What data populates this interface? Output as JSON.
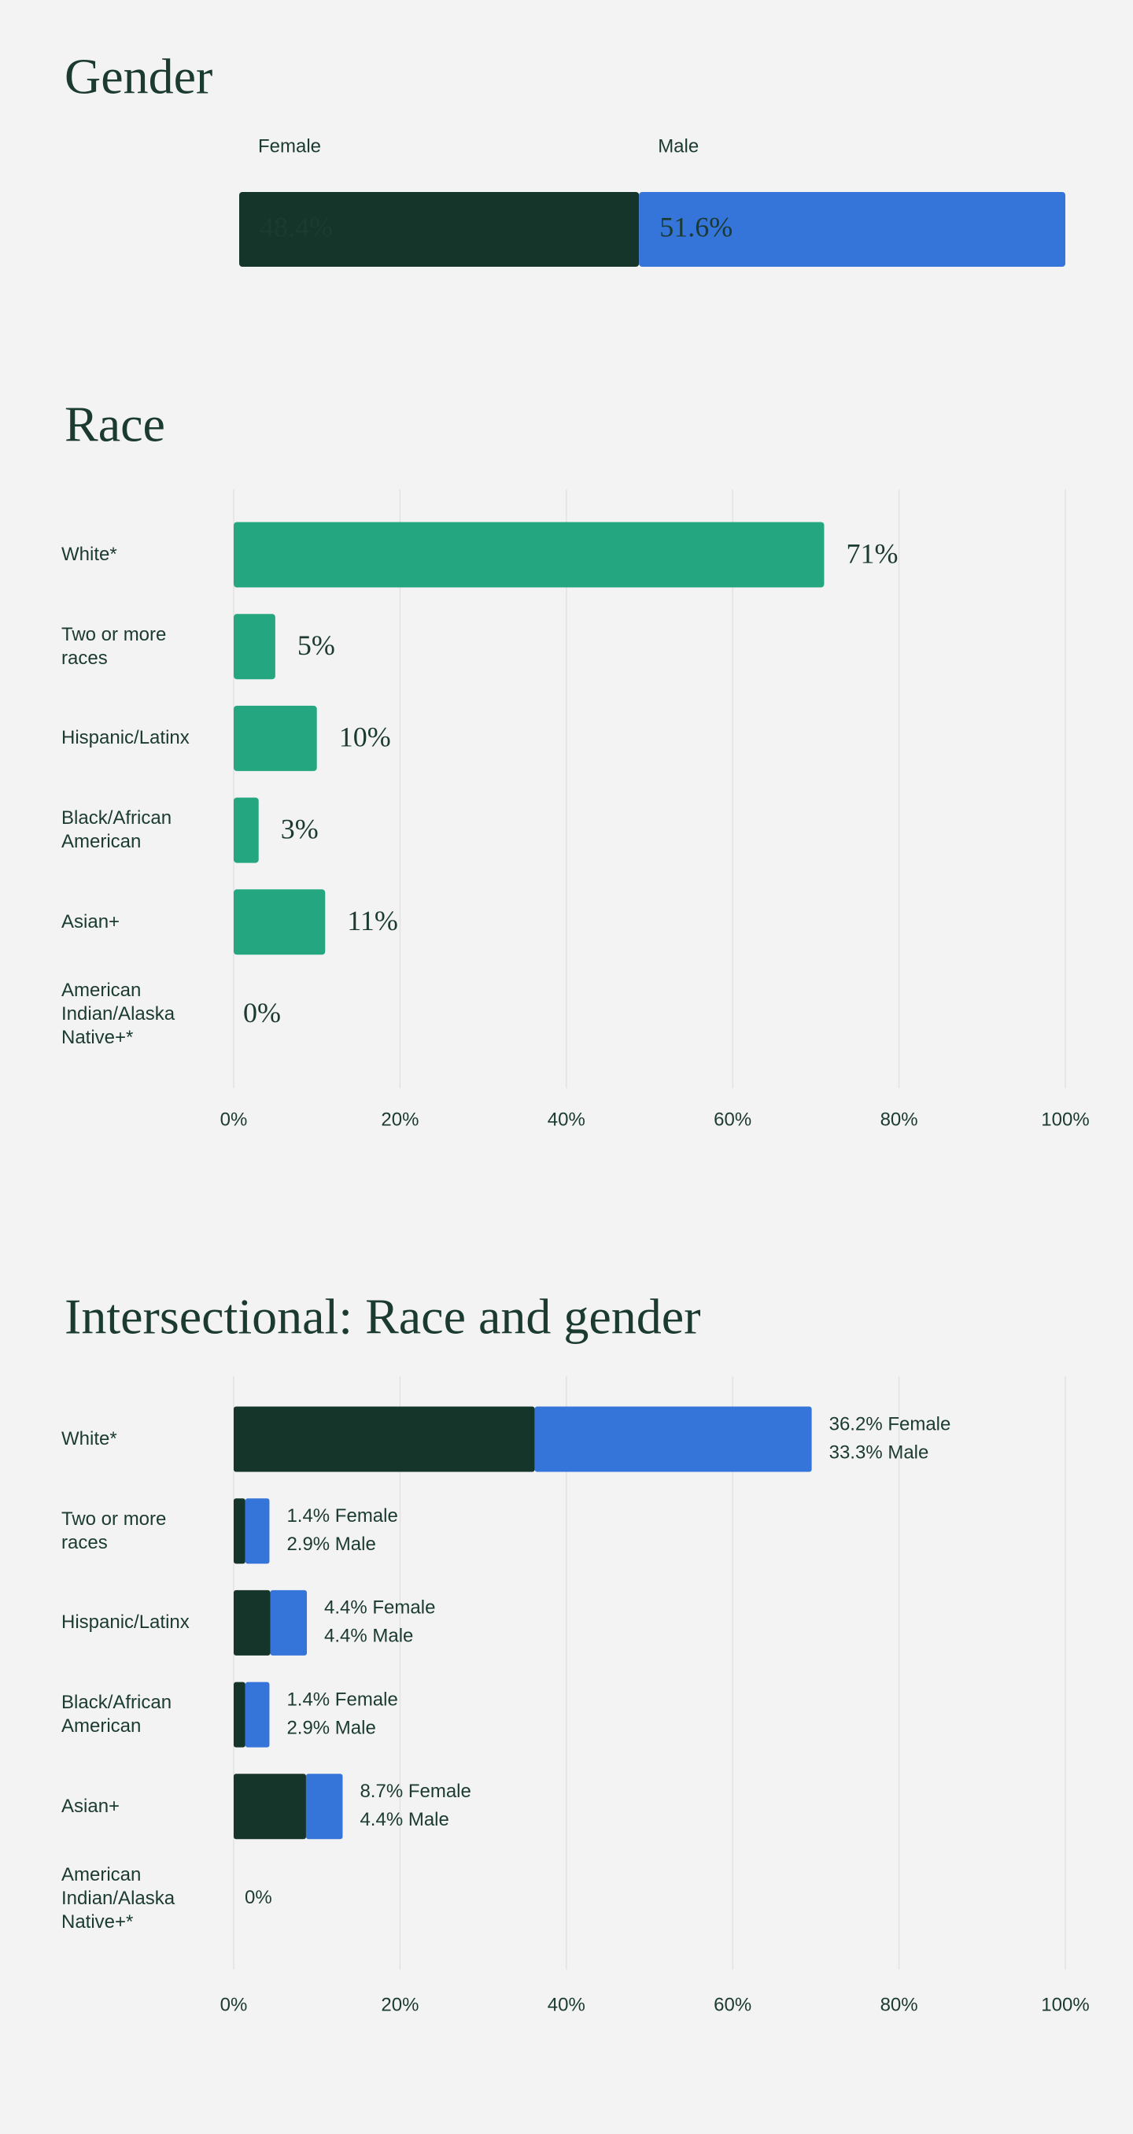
{
  "chart_data": [
    {
      "type": "stacked_bar",
      "title": "Gender",
      "series": [
        {
          "name": "Female",
          "color": "#15352b",
          "values": [
            48.4
          ],
          "value_labels": [
            "48.4%"
          ]
        },
        {
          "name": "Male",
          "color": "#3574d9",
          "values": [
            51.6
          ],
          "value_labels": [
            "51.6%"
          ]
        }
      ]
    },
    {
      "type": "barh",
      "title": "Race",
      "categories": [
        "White*",
        "Two or more races",
        "Hispanic/Latinx",
        "Black/African American",
        "Asian+",
        "American Indian/Alaska Native+*"
      ],
      "values": [
        71,
        5,
        10,
        3,
        11,
        0
      ],
      "value_labels": [
        "71%",
        "5%",
        "10%",
        "3%",
        "11%",
        "0%"
      ],
      "color": "#24a680",
      "xlim": [
        0,
        100
      ],
      "xticks": [
        {
          "value": 0,
          "label": "0%"
        },
        {
          "value": 20,
          "label": "20%"
        },
        {
          "value": 40,
          "label": "40%"
        },
        {
          "value": 60,
          "label": "60%"
        },
        {
          "value": 80,
          "label": "80%"
        },
        {
          "value": 100,
          "label": "100%"
        }
      ],
      "grid": true
    },
    {
      "type": "stacked_barh",
      "title": "Intersectional: Race and gender",
      "categories": [
        "White*",
        "Two or more races",
        "Hispanic/Latinx",
        "Black/African American",
        "Asian+",
        "American Indian/Alaska Native+*"
      ],
      "series": [
        {
          "color": "#15352b",
          "values": [
            36.2,
            1.4,
            4.4,
            1.4,
            8.7,
            0
          ],
          "value_labels": [
            "36.2% Female",
            "1.4% Female",
            "4.4% Female",
            "1.4% Female",
            "8.7% Female",
            "0%"
          ]
        },
        {
          "color": "#3574d9",
          "values": [
            33.3,
            2.9,
            4.4,
            2.9,
            4.4,
            0
          ],
          "value_labels": [
            "33.3% Male",
            "2.9% Male",
            "4.4% Male",
            "2.9% Male",
            "4.4% Male",
            null
          ]
        }
      ],
      "xlim": [
        0,
        100
      ],
      "xticks": [
        {
          "value": 0,
          "label": "0%"
        },
        {
          "value": 20,
          "label": "20%"
        },
        {
          "value": 40,
          "label": "40%"
        },
        {
          "value": 60,
          "label": "60%"
        },
        {
          "value": 80,
          "label": "80%"
        },
        {
          "value": 100,
          "label": "100%"
        }
      ],
      "grid": true
    }
  ]
}
